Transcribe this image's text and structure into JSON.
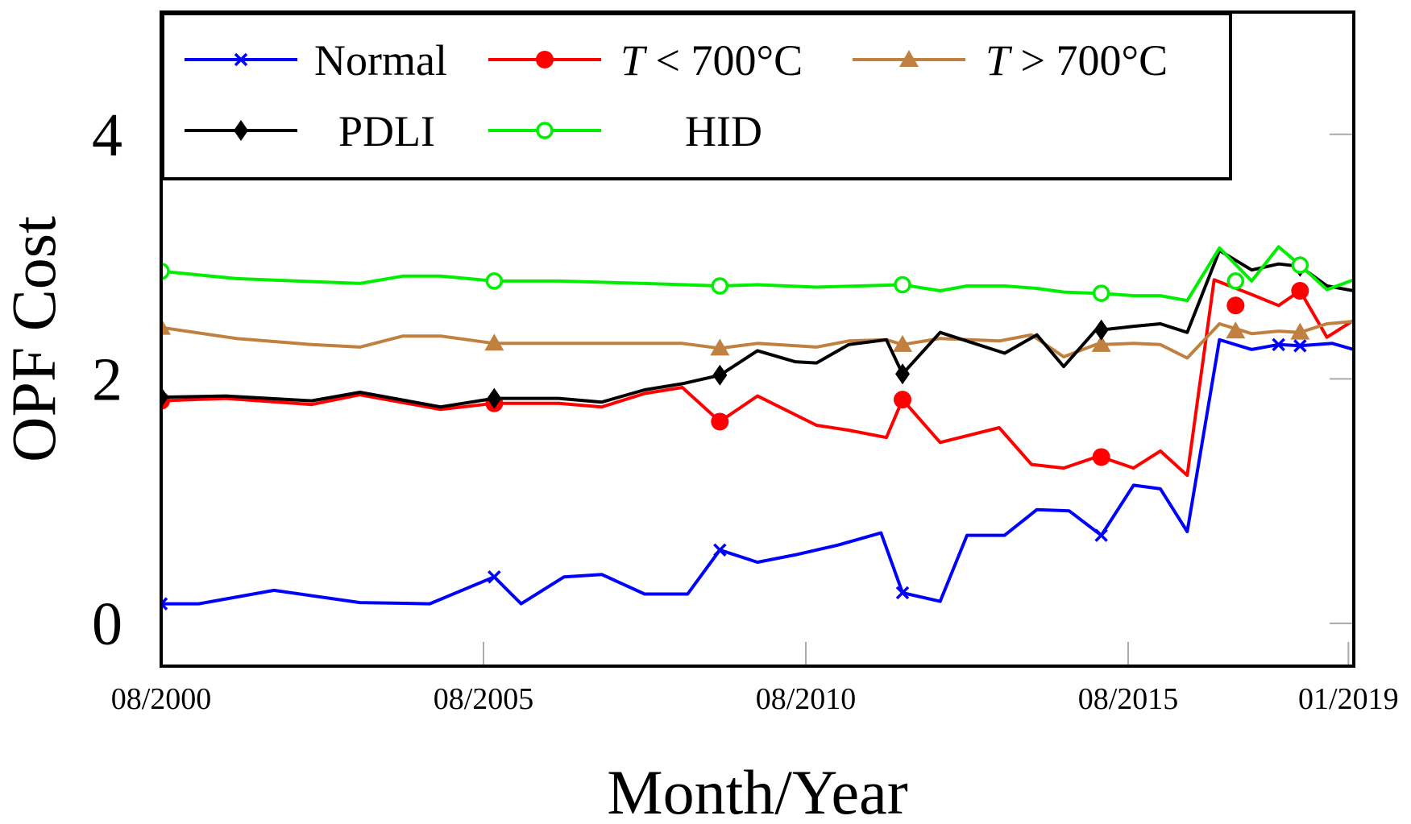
{
  "chart_data": {
    "type": "line",
    "title": "",
    "xlabel": "Month/Year",
    "ylabel": "OPF Cost",
    "xlim": [
      0,
      222
    ],
    "ylim": [
      -0.35,
      5.0
    ],
    "grid": false,
    "legend_position": "top-left",
    "x_ticks": [
      {
        "value": 0,
        "label": "08/2000"
      },
      {
        "value": 60,
        "label": "08/2005"
      },
      {
        "value": 120,
        "label": "08/2010"
      },
      {
        "value": 180,
        "label": "08/2015"
      },
      {
        "value": 221,
        "label": "01/2019"
      }
    ],
    "y_ticks": [
      {
        "value": 0,
        "label": "0"
      },
      {
        "value": 2,
        "label": "2"
      },
      {
        "value": 4,
        "label": "4"
      }
    ],
    "series": [
      {
        "name": "Normal",
        "legend_prefix": "",
        "legend_suffix": "",
        "color": "#0000ff",
        "marker": "x",
        "x": [
          0,
          7,
          21,
          37,
          50,
          62,
          67,
          75,
          82,
          90,
          98,
          104,
          111,
          118,
          126,
          134,
          138,
          145,
          150,
          157,
          163,
          169,
          175,
          181,
          186,
          191,
          197,
          203,
          208,
          212,
          218,
          222
        ],
        "y": [
          0.16,
          0.16,
          0.27,
          0.17,
          0.16,
          0.38,
          0.16,
          0.38,
          0.4,
          0.24,
          0.24,
          0.6,
          0.5,
          0.56,
          0.64,
          0.74,
          0.25,
          0.18,
          0.72,
          0.72,
          0.93,
          0.92,
          0.72,
          1.13,
          1.1,
          0.75,
          2.32,
          2.24,
          2.28,
          2.27,
          2.29,
          2.24
        ],
        "marker_x": [
          0,
          62,
          104,
          138,
          175,
          208,
          212
        ],
        "marker_y": [
          0.16,
          0.38,
          0.6,
          0.25,
          0.72,
          2.28,
          2.27
        ]
      },
      {
        "name": "700°C",
        "legend_prefix": "T",
        "legend_suffix": " < 700°C",
        "color": "#ff0000",
        "marker": "circle-filled",
        "x": [
          0,
          12,
          28,
          37,
          52,
          62,
          74,
          82,
          90,
          97,
          104,
          111,
          122,
          128,
          135,
          138,
          145,
          156,
          162,
          168,
          174,
          175,
          181,
          186,
          191,
          196,
          203,
          208,
          212,
          217,
          222
        ],
        "y": [
          1.82,
          1.84,
          1.79,
          1.87,
          1.75,
          1.8,
          1.8,
          1.77,
          1.88,
          1.93,
          1.65,
          1.86,
          1.62,
          1.58,
          1.52,
          1.83,
          1.48,
          1.6,
          1.3,
          1.27,
          1.36,
          1.36,
          1.27,
          1.41,
          1.21,
          2.81,
          2.69,
          2.6,
          2.72,
          2.34,
          2.48
        ],
        "marker_x": [
          0,
          62,
          104,
          138,
          175,
          200,
          212
        ],
        "marker_y": [
          1.82,
          1.8,
          1.65,
          1.83,
          1.36,
          2.6,
          2.72
        ]
      },
      {
        "name": "700°C",
        "legend_prefix": "T",
        "legend_suffix": " > 700°C",
        "color": "#bf8040",
        "marker": "triangle-filled",
        "x": [
          0,
          14,
          28,
          37,
          45,
          52,
          62,
          74,
          82,
          90,
          97,
          104,
          111,
          122,
          128,
          135,
          138,
          145,
          156,
          162,
          168,
          174,
          175,
          181,
          186,
          191,
          197,
          203,
          208,
          212,
          217,
          222
        ],
        "y": [
          2.42,
          2.33,
          2.28,
          2.26,
          2.35,
          2.35,
          2.29,
          2.29,
          2.29,
          2.29,
          2.29,
          2.25,
          2.29,
          2.26,
          2.31,
          2.32,
          2.28,
          2.33,
          2.31,
          2.36,
          2.18,
          2.28,
          2.28,
          2.29,
          2.28,
          2.17,
          2.45,
          2.37,
          2.39,
          2.38,
          2.45,
          2.47
        ],
        "marker_x": [
          0,
          62,
          104,
          138,
          175,
          200,
          212
        ],
        "marker_y": [
          2.42,
          2.29,
          2.25,
          2.28,
          2.28,
          2.39,
          2.38
        ]
      },
      {
        "name": "PDLI",
        "legend_prefix": "",
        "legend_suffix": "",
        "color": "#000000",
        "marker": "diamond-filled",
        "x": [
          0,
          12,
          28,
          37,
          52,
          62,
          74,
          82,
          90,
          97,
          104,
          111,
          118,
          122,
          128,
          135,
          138,
          145,
          157,
          163,
          168,
          174,
          175,
          181,
          186,
          191,
          197,
          203,
          208,
          212,
          217,
          222
        ],
        "y": [
          1.85,
          1.86,
          1.82,
          1.89,
          1.77,
          1.84,
          1.84,
          1.81,
          1.91,
          1.96,
          2.03,
          2.23,
          2.14,
          2.13,
          2.28,
          2.32,
          2.04,
          2.38,
          2.21,
          2.36,
          2.1,
          2.4,
          2.4,
          2.43,
          2.45,
          2.38,
          3.05,
          2.89,
          2.94,
          2.92,
          2.76,
          2.72
        ],
        "marker_x": [
          0,
          62,
          104,
          138,
          175,
          212
        ],
        "marker_y": [
          1.85,
          1.84,
          2.03,
          2.04,
          2.4,
          2.92
        ]
      },
      {
        "name": "HID",
        "legend_prefix": "",
        "legend_suffix": "",
        "color": "#00ee00",
        "marker": "circle-open",
        "x": [
          0,
          14,
          37,
          45,
          52,
          62,
          74,
          90,
          104,
          111,
          122,
          138,
          145,
          150,
          157,
          163,
          168,
          174,
          175,
          181,
          186,
          191,
          197,
          203,
          208,
          212,
          217,
          222
        ],
        "y": [
          2.88,
          2.82,
          2.78,
          2.84,
          2.84,
          2.8,
          2.8,
          2.78,
          2.76,
          2.77,
          2.75,
          2.77,
          2.72,
          2.76,
          2.76,
          2.74,
          2.71,
          2.7,
          2.7,
          2.68,
          2.68,
          2.64,
          3.07,
          2.8,
          3.08,
          2.93,
          2.73,
          2.81
        ],
        "marker_x": [
          0,
          62,
          104,
          138,
          175,
          200,
          212
        ],
        "marker_y": [
          2.88,
          2.8,
          2.76,
          2.77,
          2.7,
          2.8,
          2.93
        ]
      }
    ]
  }
}
